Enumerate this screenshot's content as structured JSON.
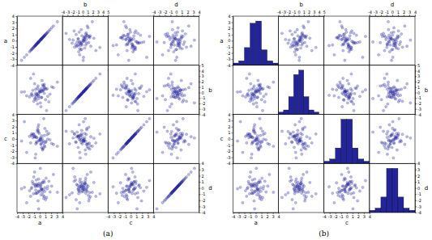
{
  "chart_data": [
    {
      "type": "scatter_matrix",
      "title": "(a)",
      "color": "#23239a",
      "variables": [
        {
          "name": "a",
          "lim": [
            -4,
            4
          ],
          "ticks": [
            -4,
            -3,
            -2,
            -1,
            0,
            1,
            2,
            3,
            4
          ],
          "values": [
            0.3,
            -1.2,
            0.8,
            -0.5,
            1.6,
            -0.1,
            0.9,
            -2.3,
            0.4,
            -0.7,
            1.1,
            -0.4,
            0.2,
            -1.5,
            0.6,
            -0.9,
            2.4,
            -0.2,
            0.05,
            -1.1,
            -0.3,
            0.7,
            -1.8,
            0.5,
            -0.6,
            1.3,
            -0.8,
            0.1,
            3.1,
            -0.2,
            0.6,
            -1.3,
            0.2,
            -0.4,
            1.8,
            -0.9,
            0.3,
            -0.1,
            1.02,
            -2.7,
            -0.5,
            0.9,
            -1.05,
            0.4,
            -0.3,
            1.4,
            -0.7,
            0.8,
            -1.6,
            0.1,
            0.2,
            -0.8,
            1.2,
            -0.2,
            0.5,
            -1.4,
            -3.2,
            0.7,
            -0.6,
            2.1
          ]
        },
        {
          "name": "b",
          "lim": [
            -4,
            5
          ],
          "ticks": [
            -4,
            -3,
            -2,
            -1,
            0,
            1,
            2,
            3,
            4,
            5
          ],
          "values": [
            -0.9,
            0.4,
            1.5,
            -0.3,
            -1.7,
            0.1,
            0.8,
            -0.6,
            2.2,
            -0.1,
            0.6,
            -2.1,
            0.3,
            -0.4,
            1.1,
            -1.2,
            0.9,
            -0.7,
            0.2,
            3.4,
            -0.2,
            1.3,
            -0.8,
            0.5,
            -1.4,
            0.7,
            -0.5,
            0.05,
            1.9,
            -1.1,
            0.3,
            -0.6,
            -2.6,
            0.8,
            -0.3,
            1.6,
            -0.9,
            0.4,
            -1.3,
            0.15,
            -0.4,
            0.9,
            -1.6,
            0.2,
            1.2,
            -0.7,
            0.6,
            -0.15,
            2.6,
            -1.9,
            0.7,
            -1.02,
            -3.3,
            -0.5,
            1.4,
            -0.2,
            0.1,
            0.5,
            -0.8,
            1.05
          ]
        },
        {
          "name": "c",
          "lim": [
            -4,
            4
          ],
          "ticks": [
            -4,
            -3,
            -2,
            -1,
            0,
            1,
            2,
            3,
            4
          ],
          "values": [
            0.5,
            0.2,
            -1.1,
            -0.6,
            0.9,
            -0.3,
            1.7,
            -2.2,
            0.1,
            -0.8,
            -0.4,
            1.2,
            -0.1,
            0.6,
            -1.5,
            0.3,
            -0.9,
            2.3,
            -0.2,
            0.8,
            1.4,
            -0.7,
            0.4,
            -1.8,
            -0.5,
            0.7,
            -3.1,
            0.05,
            -1.2,
            1.1,
            -0.3,
            0.6,
            -0.8,
            1.5,
            -0.15,
            0.35,
            -1.4,
            0.9,
            -0.55,
            2.8,
            0.2,
            -1.3,
            0.75,
            -0.45,
            1.9,
            -0.05,
            -2.5,
            0.55,
            -0.65,
            0.15,
            -0.9,
            0.45,
            1.25,
            -0.25,
            -1.65,
            0.85,
            -0.35,
            3.3,
            0.25,
            -0.75
          ]
        },
        {
          "name": "d",
          "lim": [
            -4,
            4
          ],
          "ticks": [
            -4,
            -3,
            -2,
            -1,
            0,
            1,
            2,
            3,
            4
          ],
          "values": [
            -0.2,
            0.7,
            -1.4,
            0.3,
            1.1,
            -0.6,
            0.05,
            -2.4,
            0.9,
            -0.35,
            1.6,
            -0.8,
            0.4,
            -0.1,
            -1.2,
            0.6,
            2.2,
            -0.5,
            0.15,
            -0.95,
            0.35,
            -1.7,
            -0.45,
            0.85,
            1.3,
            -0.15,
            0.2,
            0.55,
            -0.7,
            -3.4,
            -0.3,
            1.05,
            -1.1,
            0.5,
            -0.65,
            2.6,
            -0.05,
            0.75,
            -1.9,
            0.1,
            0.65,
            -0.55,
            1.8,
            -0.25,
            -2.1,
            0.25,
            -0.85,
            0.95,
            -1.35,
            3.2,
            -0.4,
            0.45,
            -1.55,
            1.45,
            -0.75,
            0.08,
            -0.12,
            1.2,
            -0.9,
            0.3
          ]
        }
      ]
    },
    {
      "type": "scatter_matrix",
      "title": "(b)",
      "color": "#23239a",
      "variables": [
        {
          "name": "a",
          "lim": [
            -4,
            4
          ],
          "ticks": [
            -4,
            -3,
            -2,
            -1,
            0,
            1,
            2,
            3,
            4
          ],
          "values": [
            0.3,
            -1.2,
            0.8,
            -0.5,
            1.6,
            -0.1,
            0.9,
            -2.3,
            0.4,
            -0.7,
            1.1,
            -0.4,
            0.2,
            -1.5,
            0.6,
            -0.9,
            2.4,
            -0.2,
            0.05,
            -1.1,
            -0.3,
            0.7,
            -1.8,
            0.5,
            -0.6,
            1.3,
            -0.8,
            0.1,
            3.1,
            -0.2,
            0.6,
            -1.3,
            0.2,
            -0.4,
            1.8,
            -0.9,
            0.3,
            -0.1,
            1.02,
            -2.7,
            -0.5,
            0.9,
            -1.05,
            0.4,
            -0.3,
            1.4,
            -0.7,
            0.8,
            -1.6,
            0.1,
            0.2,
            -0.8,
            1.2,
            -0.2,
            0.5,
            -1.4,
            -3.2,
            0.7,
            -0.6,
            2.1
          ],
          "bins": [
            -4,
            -3,
            -2,
            -1,
            0,
            1,
            2,
            3,
            4
          ],
          "counts": [
            1,
            2,
            8,
            19,
            20,
            7,
            2,
            1
          ]
        },
        {
          "name": "b",
          "lim": [
            -4,
            5
          ],
          "ticks": [
            -4,
            -3,
            -2,
            -1,
            0,
            1,
            2,
            3,
            4,
            5
          ],
          "values": [
            -0.9,
            0.4,
            1.5,
            -0.3,
            -1.7,
            0.1,
            0.8,
            -0.6,
            2.2,
            -0.1,
            0.6,
            -2.1,
            0.3,
            -0.4,
            1.1,
            -1.2,
            0.9,
            -0.7,
            0.2,
            3.4,
            -0.2,
            1.3,
            -0.8,
            0.5,
            -1.4,
            0.7,
            -0.5,
            0.05,
            1.9,
            -1.1,
            0.3,
            -0.6,
            -2.6,
            0.8,
            -0.3,
            1.6,
            -0.9,
            0.4,
            -1.3,
            0.15,
            -0.4,
            0.9,
            -1.6,
            0.2,
            1.2,
            -0.7,
            0.6,
            -0.15,
            2.6,
            -1.9,
            0.7,
            -1.02,
            -3.3,
            -0.5,
            1.4,
            -0.2,
            0.1,
            0.5,
            -0.8,
            1.05
          ],
          "bins": [
            -4,
            -3,
            -2,
            -1,
            0,
            1,
            2,
            3,
            4,
            5
          ],
          "counts": [
            1,
            2,
            8,
            18,
            20,
            8,
            2,
            1,
            0
          ]
        },
        {
          "name": "c",
          "lim": [
            -4,
            4
          ],
          "ticks": [
            -4,
            -3,
            -2,
            -1,
            0,
            1,
            2,
            3,
            4
          ],
          "values": [
            0.5,
            0.2,
            -1.1,
            -0.6,
            0.9,
            -0.3,
            1.7,
            -2.2,
            0.1,
            -0.8,
            -0.4,
            1.2,
            -0.1,
            0.6,
            -1.5,
            0.3,
            -0.9,
            2.3,
            -0.2,
            0.8,
            1.4,
            -0.7,
            0.4,
            -1.8,
            -0.5,
            0.7,
            -3.1,
            0.05,
            -1.2,
            1.1,
            -0.3,
            0.6,
            -0.8,
            1.5,
            -0.15,
            0.35,
            -1.4,
            0.9,
            -0.55,
            2.8,
            0.2,
            -1.3,
            0.75,
            -0.45,
            1.9,
            -0.05,
            -2.5,
            0.55,
            -0.65,
            0.15,
            -0.9,
            0.45,
            1.25,
            -0.25,
            -1.65,
            0.85,
            -0.35,
            3.3,
            0.25,
            -0.75
          ],
          "bins": [
            -4,
            -3,
            -2,
            -1,
            0,
            1,
            2,
            3,
            4
          ],
          "counts": [
            1,
            2,
            7,
            20,
            20,
            7,
            2,
            1
          ]
        },
        {
          "name": "d",
          "lim": [
            -4,
            4
          ],
          "ticks": [
            -4,
            -3,
            -2,
            -1,
            0,
            1,
            2,
            3,
            4
          ],
          "values": [
            -0.2,
            0.7,
            -1.4,
            0.3,
            1.1,
            -0.6,
            0.05,
            -2.4,
            0.9,
            -0.35,
            1.6,
            -0.8,
            0.4,
            -0.1,
            -1.2,
            0.6,
            2.2,
            -0.5,
            0.15,
            -0.95,
            0.35,
            -1.7,
            -0.45,
            0.85,
            1.3,
            -0.15,
            0.2,
            0.55,
            -0.7,
            -3.4,
            -0.3,
            1.05,
            -1.1,
            0.5,
            -0.65,
            2.6,
            -0.05,
            0.75,
            -1.9,
            0.1,
            0.65,
            -0.55,
            1.8,
            -0.25,
            -2.1,
            0.25,
            -0.85,
            0.95,
            -1.35,
            3.2,
            -0.4,
            0.45,
            -1.55,
            1.45,
            -0.75,
            0.08,
            -0.12,
            1.2,
            -0.9,
            0.3
          ],
          "bins": [
            -4,
            -3,
            -2,
            -1,
            0,
            1,
            2,
            3,
            4
          ],
          "counts": [
            1,
            2,
            7,
            20,
            20,
            7,
            2,
            1
          ]
        }
      ]
    }
  ]
}
